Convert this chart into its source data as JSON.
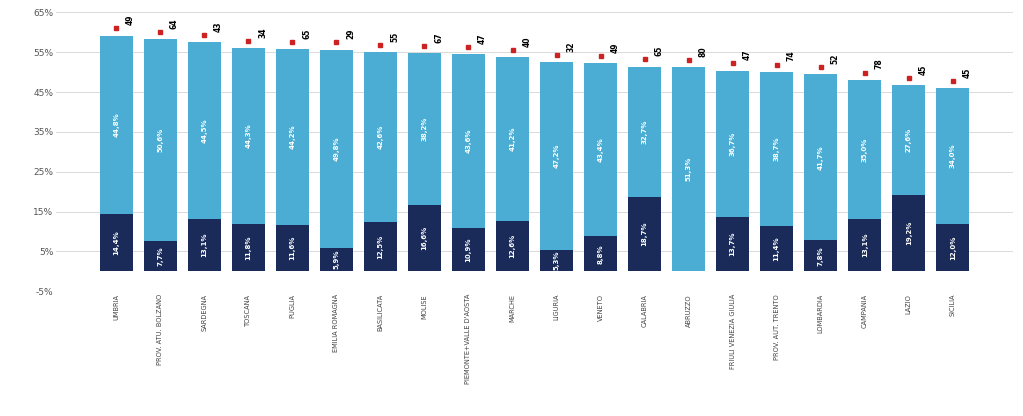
{
  "categories": [
    "UMBRIA",
    "PROV. ATU. BOLZANO",
    "SARDEGNA",
    "TOSCANA",
    "PUGLIA",
    "EMILIA ROMAGNA",
    "BASILICATA",
    "MOLISE",
    "PIEMONTE+VALLE D'AOSTA",
    "MARCHE",
    "LIGURIA",
    "VENETO",
    "CALABRIA",
    "ABRUZZO",
    "FRIULI VENEZIA GIULIA",
    "PROV. AUT. TRENTO",
    "LOMBARDIA",
    "CAMPANIA",
    "LAZIO",
    "SICILIA"
  ],
  "dpc": [
    14.4,
    7.7,
    13.1,
    11.8,
    11.6,
    5.9,
    12.5,
    16.6,
    10.9,
    12.6,
    5.3,
    8.8,
    18.7,
    0.0,
    13.7,
    11.4,
    7.8,
    13.1,
    19.2,
    12.0
  ],
  "hosp": [
    44.8,
    50.6,
    44.5,
    44.3,
    44.2,
    49.8,
    42.6,
    38.2,
    43.6,
    41.2,
    47.2,
    43.4,
    32.7,
    51.3,
    36.7,
    38.7,
    41.7,
    35.0,
    27.6,
    34.0
  ],
  "prezzo_medio": [
    49,
    64,
    43,
    34,
    65,
    29,
    55,
    67,
    47,
    40,
    32,
    49,
    65,
    80,
    47,
    74,
    52,
    78,
    45,
    45
  ],
  "color_dpc": "#1a2b5a",
  "color_hosp": "#4badd4",
  "color_prezzo": "#cc2222",
  "ylim_min": -5,
  "ylim_max": 65,
  "yticks": [
    -5,
    5,
    15,
    25,
    35,
    45,
    55,
    65
  ],
  "ytick_labels": [
    "-5%",
    "5%",
    "15%",
    "25%",
    "35%",
    "45%",
    "55%",
    "65%"
  ],
  "background_color": "#ffffff"
}
